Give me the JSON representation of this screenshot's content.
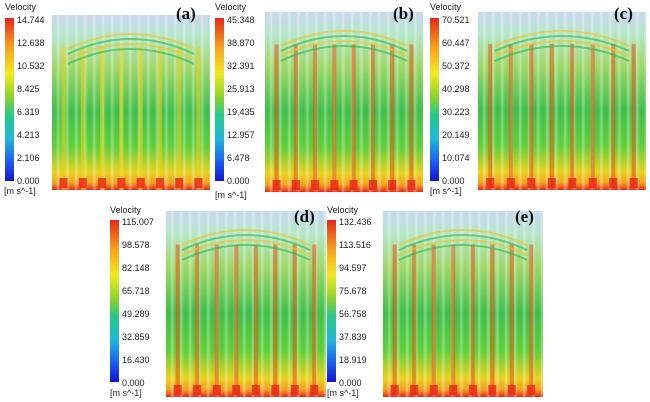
{
  "panels": [
    {
      "label": "(a)",
      "legend_title": "Velocity",
      "unit": "[m s^-1]",
      "ticks": [
        "14.744",
        "12.638",
        "10.532",
        "8.425",
        "6.319",
        "4.213",
        "2.106",
        "0.000"
      ]
    },
    {
      "label": "(b)",
      "legend_title": "Velocity",
      "unit": "[m s^-1]",
      "ticks": [
        "45.348",
        "38.870",
        "32.391",
        "25.913",
        "19.435",
        "12.957",
        "6.478",
        "0.000"
      ]
    },
    {
      "label": "(c)",
      "legend_title": "Velocity",
      "unit": "[m s^-1]",
      "ticks": [
        "70.521",
        "60.447",
        "50.372",
        "40.298",
        "30.223",
        "20.149",
        "10.074",
        "0.000"
      ]
    },
    {
      "label": "(d)",
      "legend_title": "Velocity",
      "unit": "[m s^-1]",
      "ticks": [
        "115.007",
        "98.578",
        "82.148",
        "65.718",
        "49.289",
        "32.859",
        "16.430",
        "0.000"
      ]
    },
    {
      "label": "(e)",
      "legend_title": "Velocity",
      "unit": "[m s^-1]",
      "ticks": [
        "132.436",
        "113.516",
        "94.597",
        "75.678",
        "56.758",
        "37.839",
        "18.919",
        "0.000"
      ]
    }
  ]
}
